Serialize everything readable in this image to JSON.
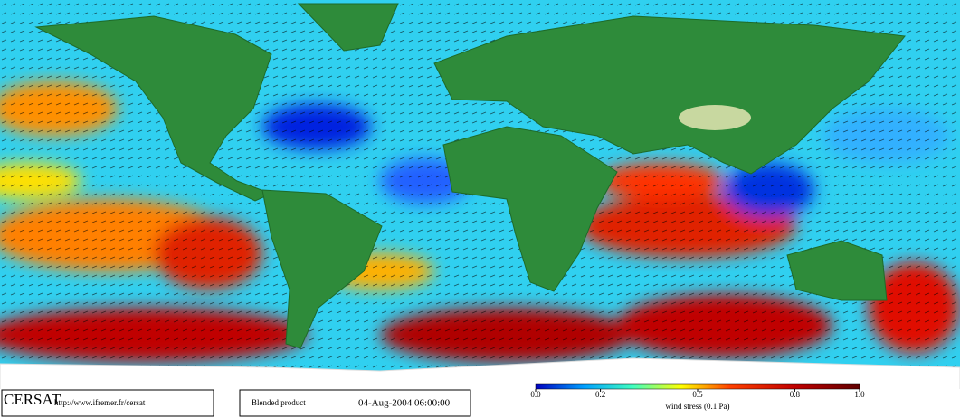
{
  "logo": "CERSAT",
  "url": "http://www.ifremer.fr/cersat",
  "product": "Blended product",
  "timestamp": "04-Aug-2004 06:00:00",
  "colorbar": {
    "label": "wind stress (0.1 Pa)",
    "lim": [
      0,
      1
    ],
    "ticks": [
      {
        "value": 0,
        "label": "0.0"
      },
      0.2,
      0.5,
      0.8,
      {
        "value": 1,
        "label": "1.0"
      }
    ]
  }
}
